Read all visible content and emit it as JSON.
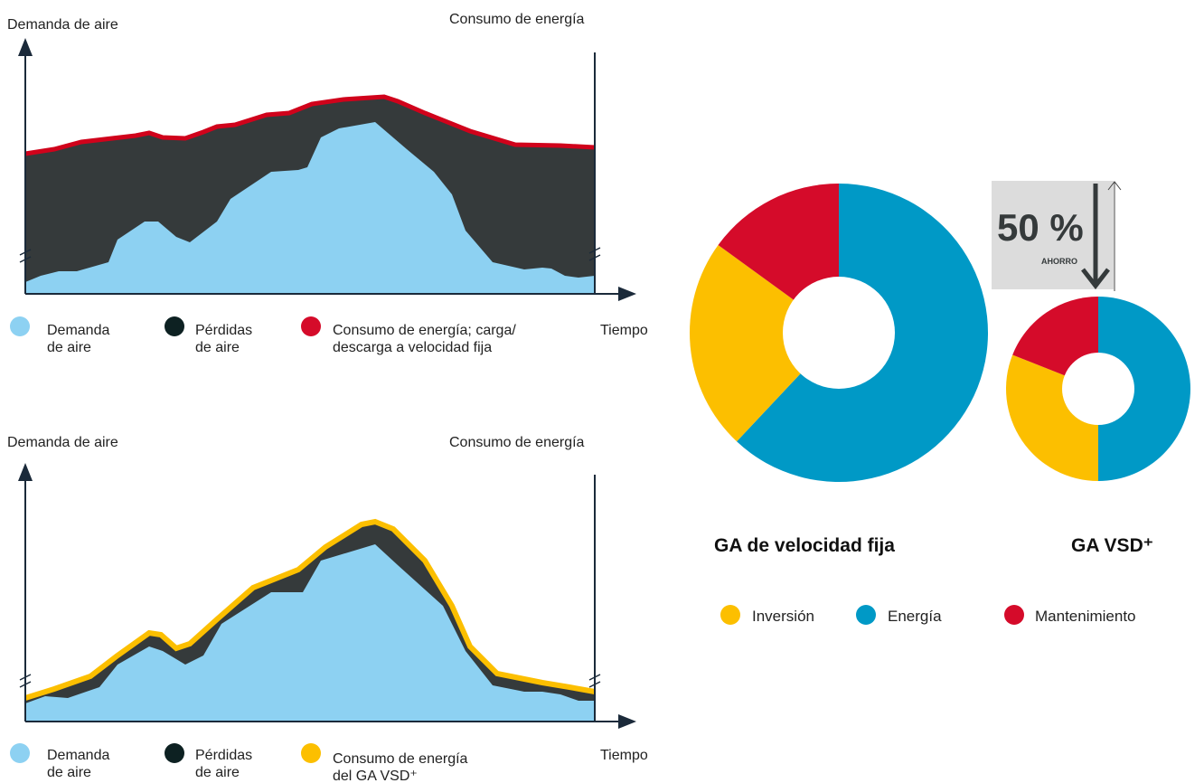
{
  "curves": [
    {
      "left_label": "Demanda de aire",
      "right_label": "Consumo de energía",
      "x_label": "Tiempo",
      "legend": [
        "Demanda\nde aire",
        "Pérdidas\nde aire",
        "Consumo de energía; carga/\ndescarga a velocidad fija"
      ]
    },
    {
      "left_label": "Demanda de aire",
      "right_label": "Consumo de energía",
      "x_label": "Tiempo",
      "legend": [
        "Demanda\nde aire",
        "Pérdidas\nde aire",
        "Consumo de energía\ndel GA VSD⁺"
      ]
    }
  ],
  "savings": {
    "label": "50 %",
    "caption": "AHORRO"
  },
  "chart_data": [
    {
      "type": "pie",
      "title": "GA de velocidad fija",
      "categories": [
        "Inversión",
        "Energía",
        "Mantenimiento"
      ],
      "values": [
        23,
        62,
        15
      ],
      "colors": [
        "#fcbf00",
        "#0099c6",
        "#d50b2a"
      ]
    },
    {
      "type": "pie",
      "title": "GA VSD⁺",
      "categories": [
        "Inversión",
        "Energía",
        "Mantenimiento"
      ],
      "values": [
        31,
        50,
        19
      ],
      "colors": [
        "#fcbf00",
        "#0099c6",
        "#d50b2a"
      ]
    }
  ]
}
